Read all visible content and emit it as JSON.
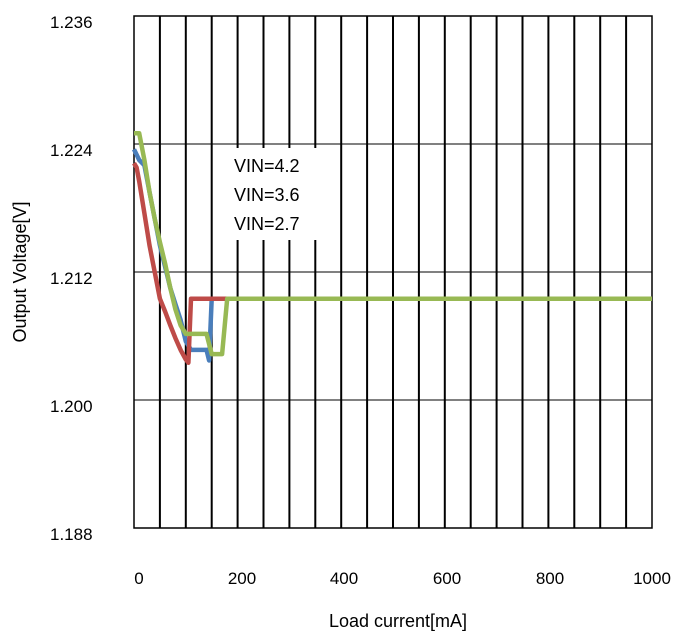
{
  "chart_data": {
    "type": "line",
    "xlabel": "Load current[mA]",
    "ylabel": "Output  Voltage[V]",
    "xlim": [
      0,
      1000
    ],
    "ylim": [
      1.188,
      1.236
    ],
    "x_ticks": [
      "0",
      "200",
      "400",
      "600",
      "800",
      "1000"
    ],
    "y_ticks": [
      "1.236",
      "1.224",
      "1.212",
      "1.200",
      "1.188"
    ],
    "x_tick_values": [
      0,
      200,
      400,
      600,
      800,
      1000
    ],
    "y_tick_values": [
      1.236,
      1.224,
      1.212,
      1.2,
      1.188
    ],
    "vertical_grid_step": 50,
    "grid": true,
    "legend_position": "upper-middle",
    "series": [
      {
        "name": "VIN=4.2",
        "color": "#4a7ebb",
        "x": [
          0,
          10,
          20,
          30,
          40,
          50,
          60,
          70,
          80,
          90,
          100,
          110,
          120,
          130,
          140,
          145,
          150,
          155,
          160,
          1000
        ],
        "y": [
          1.2235,
          1.2225,
          1.222,
          1.2195,
          1.217,
          1.2145,
          1.2125,
          1.2105,
          1.209,
          1.2075,
          1.2055,
          1.2047,
          1.2047,
          1.2047,
          1.2047,
          1.2037,
          1.2095,
          1.2095,
          1.2095,
          1.2095
        ]
      },
      {
        "name": "VIN=3.6",
        "color": "#be4b48",
        "x": [
          0,
          5,
          10,
          20,
          30,
          40,
          50,
          60,
          70,
          80,
          90,
          100,
          105,
          110,
          120,
          1000
        ],
        "y": [
          1.2222,
          1.2218,
          1.2205,
          1.2175,
          1.2145,
          1.212,
          1.2095,
          1.2083,
          1.207,
          1.2058,
          1.2047,
          1.2038,
          1.2035,
          1.2095,
          1.2095,
          1.2095
        ]
      },
      {
        "name": "VIN=2.7",
        "color": "#98b954",
        "x": [
          0,
          10,
          20,
          30,
          40,
          50,
          60,
          70,
          80,
          90,
          100,
          110,
          120,
          130,
          140,
          150,
          160,
          170,
          180,
          1000
        ],
        "y": [
          1.225,
          1.225,
          1.2225,
          1.2195,
          1.217,
          1.2148,
          1.2128,
          1.2105,
          1.2085,
          1.207,
          1.2062,
          1.2062,
          1.2062,
          1.2062,
          1.2062,
          1.2043,
          1.2043,
          1.2043,
          1.2095,
          1.2095
        ]
      }
    ]
  }
}
